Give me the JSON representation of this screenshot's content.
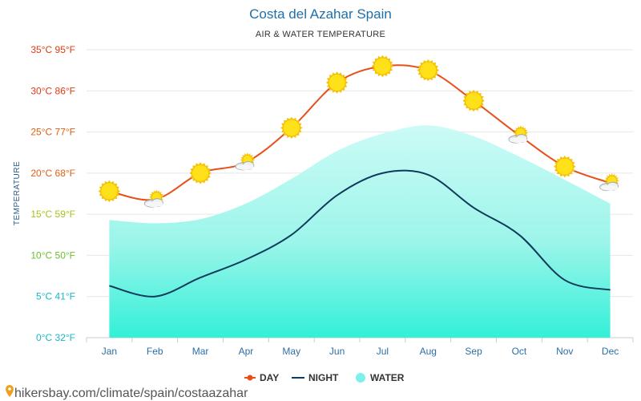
{
  "chart_data": {
    "type": "line",
    "title": "Costa del Azahar Spain",
    "subtitle": "AIR & WATER TEMPERATURE",
    "ylabel": "TEMPERATURE",
    "ylim": [
      0,
      35
    ],
    "grid": true,
    "legend_position": "bottom",
    "y_ticks": [
      {
        "value": 0,
        "label": "0°C 32°F",
        "color": "#17b8c9"
      },
      {
        "value": 5,
        "label": "5°C 41°F",
        "color": "#17b8c9"
      },
      {
        "value": 10,
        "label": "10°C 50°F",
        "color": "#6cc02a"
      },
      {
        "value": 15,
        "label": "15°C 59°F",
        "color": "#a6c21a"
      },
      {
        "value": 20,
        "label": "20°C 68°F",
        "color": "#e06010"
      },
      {
        "value": 25,
        "label": "25°C 77°F",
        "color": "#e06010"
      },
      {
        "value": 30,
        "label": "30°C 86°F",
        "color": "#e03a10"
      },
      {
        "value": 35,
        "label": "35°C 95°F",
        "color": "#e03a10"
      }
    ],
    "categories": [
      "Jan",
      "Feb",
      "Mar",
      "Apr",
      "May",
      "Jun",
      "Jul",
      "Aug",
      "Sep",
      "Oct",
      "Nov",
      "Dec"
    ],
    "series": [
      {
        "name": "DAY",
        "color": "#e8501a",
        "values": [
          17.8,
          16.8,
          20,
          21.3,
          25.5,
          31,
          33,
          32.5,
          28.8,
          24.6,
          20.8,
          18.8
        ]
      },
      {
        "name": "NIGHT",
        "color": "#0e3a5c",
        "values": [
          6.3,
          5,
          7.3,
          9.5,
          12.5,
          17.3,
          20,
          19.8,
          15.8,
          12.5,
          7,
          5.8
        ]
      },
      {
        "name": "WATER",
        "color": "#7ef0ec",
        "values": [
          14.3,
          13.9,
          14.4,
          16.3,
          19.3,
          22.7,
          24.8,
          25.8,
          24.5,
          22,
          19.2,
          16.3
        ]
      }
    ],
    "weather_icons": [
      "sun",
      "partly-cloudy",
      "sun",
      "partly-cloudy",
      "sun",
      "sun",
      "sun",
      "sun",
      "sun",
      "partly-cloudy",
      "sun",
      "partly-cloudy"
    ]
  },
  "footer": {
    "link_text": "hikersbay.com/climate/spain/costaazahar",
    "icon": "map-pin-icon"
  }
}
